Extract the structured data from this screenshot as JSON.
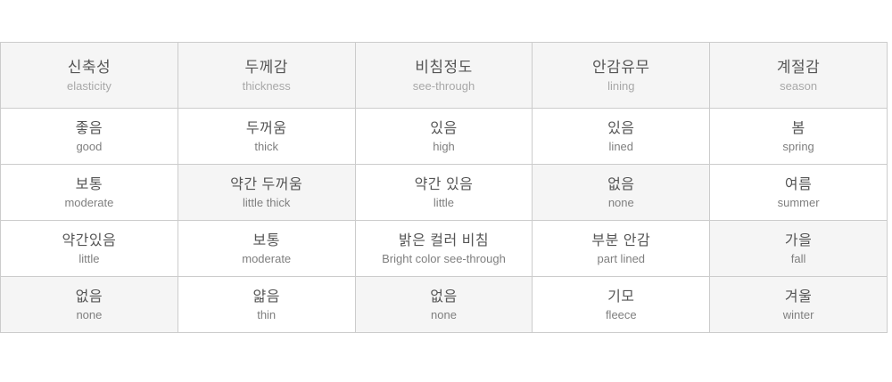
{
  "colors": {
    "page_bg": "#ffffff",
    "header_bg": "#f5f5f5",
    "highlight_bg": "#f5f5f5",
    "border": "#cccccc",
    "korean_text": "#555555",
    "header_english_text": "#a8a8a8",
    "cell_english_text": "#7f7f7f"
  },
  "table": {
    "columns": [
      {
        "header": {
          "ko": "신축성",
          "en": "elasticity"
        },
        "cells": [
          {
            "ko": "좋음",
            "en": "good",
            "highlighted": false
          },
          {
            "ko": "보통",
            "en": "moderate",
            "highlighted": false
          },
          {
            "ko": "약간있음",
            "en": "little",
            "highlighted": false
          },
          {
            "ko": "없음",
            "en": "none",
            "highlighted": true
          }
        ]
      },
      {
        "header": {
          "ko": "두께감",
          "en": "thickness"
        },
        "cells": [
          {
            "ko": "두꺼움",
            "en": "thick",
            "highlighted": false
          },
          {
            "ko": "약간 두꺼움",
            "en": "little thick",
            "highlighted": true
          },
          {
            "ko": "보통",
            "en": "moderate",
            "highlighted": false
          },
          {
            "ko": "얇음",
            "en": "thin",
            "highlighted": false
          }
        ]
      },
      {
        "header": {
          "ko": "비침정도",
          "en": "see-through"
        },
        "cells": [
          {
            "ko": "있음",
            "en": "high",
            "highlighted": false
          },
          {
            "ko": "약간 있음",
            "en": "little",
            "highlighted": false
          },
          {
            "ko": "밝은 컬러 비침",
            "en": "Bright color see-through",
            "highlighted": false
          },
          {
            "ko": "없음",
            "en": "none",
            "highlighted": true
          }
        ]
      },
      {
        "header": {
          "ko": "안감유무",
          "en": "lining"
        },
        "cells": [
          {
            "ko": "있음",
            "en": "lined",
            "highlighted": false
          },
          {
            "ko": "없음",
            "en": "none",
            "highlighted": true
          },
          {
            "ko": "부분 안감",
            "en": "part lined",
            "highlighted": false
          },
          {
            "ko": "기모",
            "en": "fleece",
            "highlighted": false
          }
        ]
      },
      {
        "header": {
          "ko": "계절감",
          "en": "season"
        },
        "cells": [
          {
            "ko": "봄",
            "en": "spring",
            "highlighted": false
          },
          {
            "ko": "여름",
            "en": "summer",
            "highlighted": false
          },
          {
            "ko": "가을",
            "en": "fall",
            "highlighted": true
          },
          {
            "ko": "겨울",
            "en": "winter",
            "highlighted": true
          }
        ]
      }
    ]
  }
}
